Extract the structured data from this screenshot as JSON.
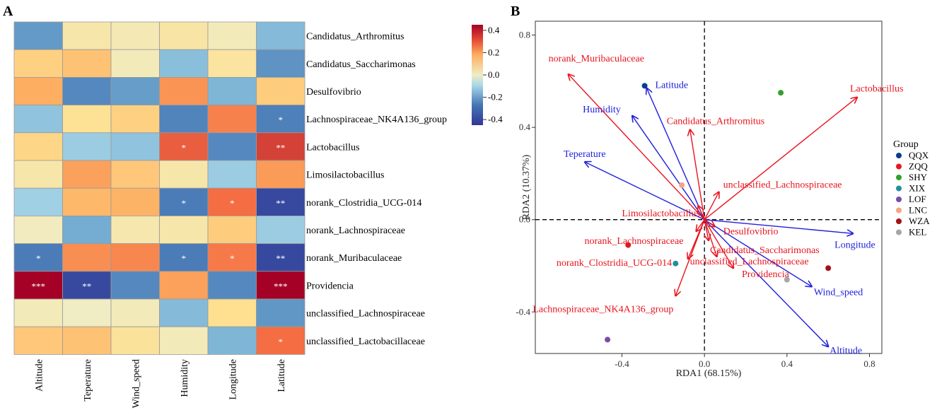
{
  "panels": {
    "a": "A",
    "b": "B"
  },
  "chart_data": [
    {
      "type": "heatmap",
      "rows": [
        "Candidatus_Arthromitus",
        "Candidatus_Saccharimonas",
        "Desulfovibrio",
        "Lachnospiraceae_NK4A136_group",
        "Lactobacillus",
        "Limosilactobacillus",
        "norank_Clostridia_UCG-014",
        "norank_Lachnospiraceae",
        "norank_Muribaculaceae",
        "Providencia",
        "unclassified_Lachnospiraceae",
        "unclassified_Lactobacillaceae"
      ],
      "columns": [
        "Altitude",
        "Teperature",
        "Wind_speed",
        "Humidity",
        "Longitude",
        "Latitude"
      ],
      "values": [
        [
          -0.25,
          0.05,
          0.03,
          0.06,
          0.02,
          -0.17
        ],
        [
          0.13,
          0.16,
          0.02,
          -0.16,
          0.07,
          -0.27
        ],
        [
          0.2,
          -0.3,
          -0.24,
          0.24,
          -0.18,
          0.14
        ],
        [
          -0.15,
          0.09,
          0.13,
          -0.31,
          0.27,
          -0.32
        ],
        [
          0.12,
          -0.13,
          -0.15,
          0.32,
          -0.3,
          0.36
        ],
        [
          0.05,
          0.22,
          0.15,
          0.05,
          -0.13,
          0.23
        ],
        [
          -0.12,
          0.18,
          0.19,
          -0.33,
          0.3,
          -0.42
        ],
        [
          0.01,
          -0.2,
          0.04,
          0.05,
          0.14,
          -0.13
        ],
        [
          -0.33,
          0.25,
          0.26,
          -0.33,
          0.28,
          -0.42
        ],
        [
          0.45,
          -0.42,
          -0.3,
          0.22,
          -0.3,
          0.45
        ],
        [
          0.02,
          0.0,
          0.02,
          -0.17,
          0.1,
          -0.26
        ],
        [
          0.15,
          0.16,
          0.08,
          0.02,
          -0.18,
          0.3
        ]
      ],
      "significance": [
        [
          "",
          "",
          "",
          "",
          "",
          ""
        ],
        [
          "",
          "",
          "",
          "",
          "",
          ""
        ],
        [
          "",
          "",
          "",
          "",
          "",
          ""
        ],
        [
          "",
          "",
          "",
          "",
          "",
          "*"
        ],
        [
          "",
          "",
          "",
          "*",
          "",
          "**"
        ],
        [
          "",
          "",
          "",
          "",
          "",
          ""
        ],
        [
          "",
          "",
          "",
          "*",
          "*",
          "**"
        ],
        [
          "",
          "",
          "",
          "",
          "",
          ""
        ],
        [
          "*",
          "",
          "",
          "*",
          "*",
          "**"
        ],
        [
          "***",
          "**",
          "",
          "",
          "",
          "***"
        ],
        [
          "",
          "",
          "",
          "",
          "",
          ""
        ],
        [
          "",
          "",
          "",
          "",
          "",
          "*"
        ]
      ],
      "colorbar": {
        "range": [
          -0.45,
          0.45
        ],
        "ticks": [
          "0.4",
          "0.2",
          "0.0",
          "-0.2",
          "-0.4"
        ],
        "tick_values": [
          0.4,
          0.2,
          0.0,
          -0.2,
          -0.4
        ]
      }
    },
    {
      "type": "scatter",
      "subtype": "RDA biplot",
      "xlabel": "RDA1 (68.15%)",
      "ylabel": "RDA2 (10.37%)",
      "xlim": [
        -0.82,
        0.86
      ],
      "ylim": [
        -0.58,
        0.86
      ],
      "x_ticks": [
        "-0.4",
        "0.0",
        "0.4",
        "0.8"
      ],
      "x_tick_values": [
        -0.4,
        0.0,
        0.4,
        0.8
      ],
      "y_ticks": [
        "0.8",
        "0.4",
        "0.0",
        "-0.4"
      ],
      "y_tick_values": [
        0.8,
        0.4,
        0.0,
        -0.4
      ],
      "env_vectors": [
        {
          "name": "Latitude",
          "x": -0.28,
          "y": 0.57
        },
        {
          "name": "Humidity",
          "x": -0.35,
          "y": 0.45
        },
        {
          "name": "Teperature",
          "x": -0.58,
          "y": 0.25
        },
        {
          "name": "Longitude",
          "x": 0.72,
          "y": -0.06
        },
        {
          "name": "Wind_speed",
          "x": 0.52,
          "y": -0.29
        },
        {
          "name": "Altitude",
          "x": 0.6,
          "y": -0.55
        }
      ],
      "species_vectors": [
        {
          "name": "norank_Muribaculaceae",
          "x": -0.66,
          "y": 0.63
        },
        {
          "name": "Lactobacillus",
          "x": 0.74,
          "y": 0.53
        },
        {
          "name": "Candidatus_Arthromitus",
          "x": -0.07,
          "y": 0.39
        },
        {
          "name": "unclassified_Lachnospiraceae",
          "x": 0.07,
          "y": 0.12
        },
        {
          "name": "Limosilactobacillus",
          "x": -0.03,
          "y": 0.06
        },
        {
          "name": "Desulfovibrio",
          "x": 0.05,
          "y": -0.03
        },
        {
          "name": "norank_Lachnospiraceae",
          "x": -0.04,
          "y": -0.05
        },
        {
          "name": "Candidatus_Saccharimonas",
          "x": 0.02,
          "y": -0.09
        },
        {
          "name": "norank_Clostridia_UCG-014",
          "x": -0.08,
          "y": -0.17
        },
        {
          "name": "unclassified_Lachnospiraceae",
          "x": 0.06,
          "y": -0.16
        },
        {
          "name": "Providencia",
          "x": 0.14,
          "y": -0.21
        },
        {
          "name": "Lachnospiraceae_NK4A136_group",
          "x": -0.14,
          "y": -0.33
        }
      ],
      "groups": [
        {
          "name": "QQX",
          "color": "#0b3d8c",
          "x": -0.29,
          "y": 0.58
        },
        {
          "name": "ZQQ",
          "color": "#e31a1c",
          "x": -0.37,
          "y": -0.11
        },
        {
          "name": "SHY",
          "color": "#33a02c",
          "x": 0.37,
          "y": 0.55
        },
        {
          "name": "XIX",
          "color": "#1f8fa0",
          "x": -0.14,
          "y": -0.19
        },
        {
          "name": "LOF",
          "color": "#7b4ba5",
          "x": -0.47,
          "y": -0.52
        },
        {
          "name": "LNC",
          "color": "#f4a582",
          "x": -0.11,
          "y": 0.15
        },
        {
          "name": "WZA",
          "color": "#a50f15",
          "x": 0.6,
          "y": -0.21
        },
        {
          "name": "KEL",
          "color": "#a6a6a6",
          "x": 0.4,
          "y": -0.26
        }
      ],
      "legend_title": "Group",
      "colors": {
        "env": "#1f1fdd",
        "species": "#e8141e"
      }
    }
  ]
}
